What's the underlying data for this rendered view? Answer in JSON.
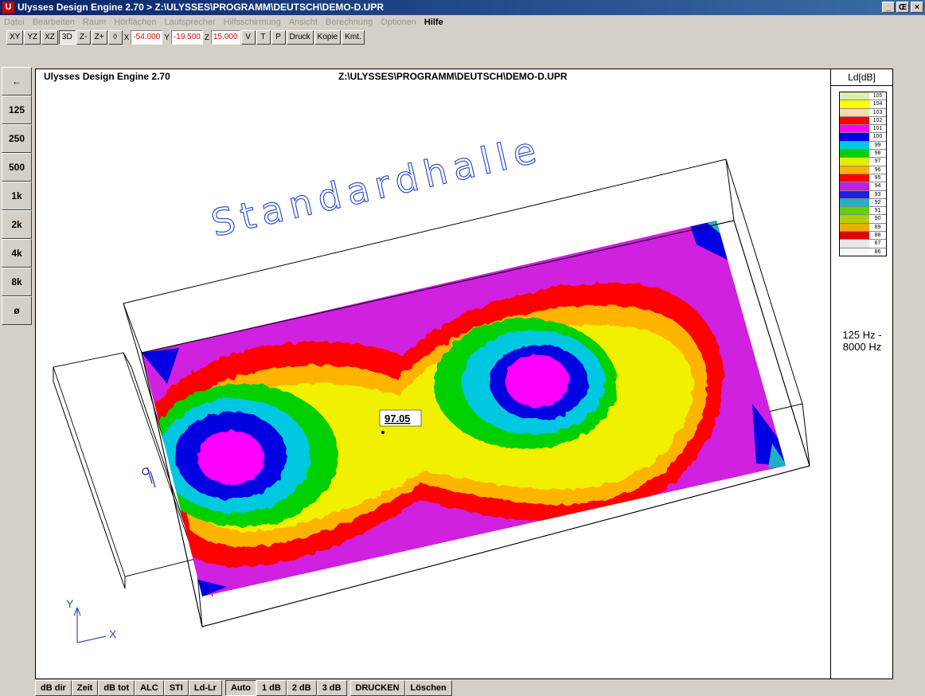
{
  "window": {
    "title": "Ulysses Design Engine 2.70 > Z:\\ULYSSES\\PROGRAMM\\DEUTSCH\\DEMO-D.UPR",
    "app_icon": "U",
    "controls": {
      "minimize": "_",
      "maximize": "Œ",
      "close": "×"
    }
  },
  "menu": [
    "Datei",
    "Bearbeiten",
    "Raum",
    "Hörflächen",
    "Lautsprecher",
    "Hilfsschirmung",
    "Ansicht",
    "Berechnung",
    "Optionen",
    "Hilfe"
  ],
  "toolbar": {
    "views": [
      "XY",
      "YZ",
      "XZ",
      "3D",
      "Z-",
      "Z+",
      "◊"
    ],
    "active_view": "3D",
    "coords": {
      "x_label": "X",
      "x": "-54.000",
      "y_label": "Y",
      "y": "-19.500",
      "z_label": "Z",
      "z": "15.000"
    },
    "buttons": [
      "V",
      "T",
      "P",
      "Druck",
      "Kopie",
      "Kmt."
    ]
  },
  "side_tools": [
    "←",
    "125",
    "250",
    "500",
    "1k",
    "2k",
    "4k",
    "8k",
    "ø"
  ],
  "canvas": {
    "header_left": "Ulysses Design Engine 2.70",
    "header_right": "Z:\\ULYSSES\\PROGRAMM\\DEUTSCH\\DEMO-D.UPR",
    "room_name": "Standardhalle",
    "probe_value": "97.05",
    "axis_x": "X",
    "axis_y": "Y"
  },
  "colors": {
    "c105": "#d8f0b4",
    "c104": "#ffff00",
    "c103": "#ffd8b0",
    "c102": "#ff0000",
    "c101": "#ff00ff",
    "c100": "#0000e0",
    "c99": "#00c8e0",
    "c98": "#00d000",
    "c97": "#e0f000",
    "c96": "#ffb400",
    "c95": "#ff0000",
    "c94": "#c020e0",
    "c93": "#2020e0",
    "c92": "#20b0c0",
    "c91": "#60d000",
    "c90": "#b0d000",
    "c89": "#e8b000",
    "c88": "#e00000",
    "c87": "#e8e8e8",
    "c86": "#f8f8f8"
  },
  "legend": {
    "unit": "Ld[dB]",
    "entries": [
      {
        "value": "105",
        "color": "#d8f0b4"
      },
      {
        "value": "104",
        "color": "#ffff00"
      },
      {
        "value": "103",
        "color": "#ffd8b0"
      },
      {
        "value": "102",
        "color": "#ff0000"
      },
      {
        "value": "101",
        "color": "#ff00ff"
      },
      {
        "value": "100",
        "color": "#0000e0"
      },
      {
        "value": "99",
        "color": "#00c8e0"
      },
      {
        "value": "98",
        "color": "#00d000"
      },
      {
        "value": "97",
        "color": "#e0f000"
      },
      {
        "value": "96",
        "color": "#ffb400"
      },
      {
        "value": "95",
        "color": "#ff0000"
      },
      {
        "value": "94",
        "color": "#c020e0"
      },
      {
        "value": "93",
        "color": "#2020e0"
      },
      {
        "value": "92",
        "color": "#20b0c0"
      },
      {
        "value": "91",
        "color": "#60d000"
      },
      {
        "value": "90",
        "color": "#b0d000"
      },
      {
        "value": "89",
        "color": "#e8b000"
      },
      {
        "value": "88",
        "color": "#e00000"
      },
      {
        "value": "87",
        "color": "#e8e8e8"
      },
      {
        "value": "86",
        "color": "#f8f8f8"
      }
    ],
    "freq_line1": "125 Hz -",
    "freq_line2": "8000 Hz"
  },
  "bottom_tabs": [
    "dB dir",
    "Zeit",
    "dB tot",
    "ALC",
    "STI",
    "Ld-Lr",
    "Auto",
    "1 dB",
    "2 dB",
    "3 dB",
    "DRUCKEN",
    "Löschen"
  ],
  "bottom_active": "Auto"
}
